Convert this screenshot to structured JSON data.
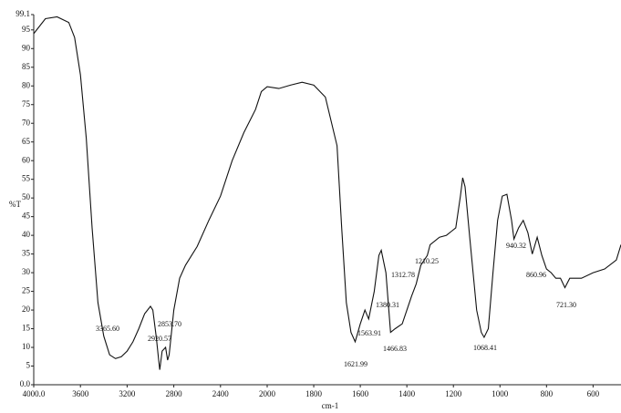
{
  "chart_data": {
    "type": "line",
    "xlabel": "cm-1",
    "ylabel": "%T",
    "x": [
      4000,
      3900,
      3800,
      3700,
      3650,
      3600,
      3550,
      3500,
      3450,
      3400,
      3350,
      3300,
      3250,
      3200,
      3150,
      3100,
      3050,
      3000,
      2980,
      2950,
      2930,
      2920,
      2900,
      2870,
      2853,
      2840,
      2800,
      2750,
      2700,
      2600,
      2500,
      2400,
      2300,
      2200,
      2100,
      2050,
      2000,
      1950,
      1900,
      1850,
      1800,
      1750,
      1700,
      1680,
      1660,
      1640,
      1622,
      1600,
      1580,
      1564,
      1540,
      1520,
      1510,
      1490,
      1470,
      1450,
      1420,
      1400,
      1380,
      1360,
      1340,
      1312,
      1300,
      1260,
      1230,
      1210,
      1190,
      1170,
      1160,
      1150,
      1130,
      1100,
      1080,
      1068,
      1050,
      1030,
      1010,
      990,
      970,
      950,
      940,
      920,
      900,
      880,
      861,
      840,
      820,
      800,
      780,
      760,
      740,
      721,
      700,
      650,
      600,
      550,
      500,
      480
    ],
    "values": [
      94,
      98,
      98.5,
      97,
      93,
      83,
      66,
      42,
      22,
      13,
      8,
      7,
      7.5,
      9,
      11.5,
      15,
      19,
      21,
      20,
      12.7,
      6.6,
      4,
      9,
      10,
      6.6,
      8,
      20,
      28.5,
      32,
      37,
      44,
      50.5,
      60,
      67.5,
      73.7,
      78.5,
      79.8,
      79.3,
      80.2,
      81,
      80.2,
      77,
      64,
      42,
      22,
      14,
      11.5,
      16.3,
      20,
      17.6,
      25,
      34.6,
      36,
      30,
      14,
      15,
      16.3,
      20,
      23.7,
      27,
      32,
      34.6,
      37.5,
      39.5,
      40,
      41,
      42,
      50.5,
      55.4,
      53,
      39.5,
      20,
      14,
      12.7,
      15,
      30,
      44,
      50.5,
      51,
      44,
      39,
      42,
      44,
      40.7,
      35,
      39.5,
      34.6,
      31,
      30,
      28.5,
      28.5,
      26,
      28.5,
      28.5,
      30,
      31,
      33.4,
      37.5
    ],
    "color": "#111111",
    "xlim": [
      4000,
      480
    ],
    "x_scale_change": 2000,
    "xticks": [
      {
        "value": 4000,
        "label": "4000.0"
      },
      3600,
      3200,
      2800,
      2400,
      2000,
      1800,
      1600,
      1400,
      1200,
      1000,
      800,
      600
    ],
    "ylim": [
      0,
      99.1
    ],
    "yticks": [
      {
        "value": 0,
        "label": "0.0"
      },
      5,
      10,
      15,
      20,
      25,
      30,
      35,
      40,
      45,
      50,
      55,
      60,
      65,
      70,
      75,
      80,
      85,
      90,
      95,
      99.1
    ],
    "annotations": [
      "3365.60",
      "2920.57",
      "2853.70",
      "1621.99",
      "1563.91",
      "1466.83",
      "1380.31",
      "1312.78",
      "1210.25",
      "1068.41",
      "940.32",
      "860.96",
      "721.30"
    ]
  }
}
